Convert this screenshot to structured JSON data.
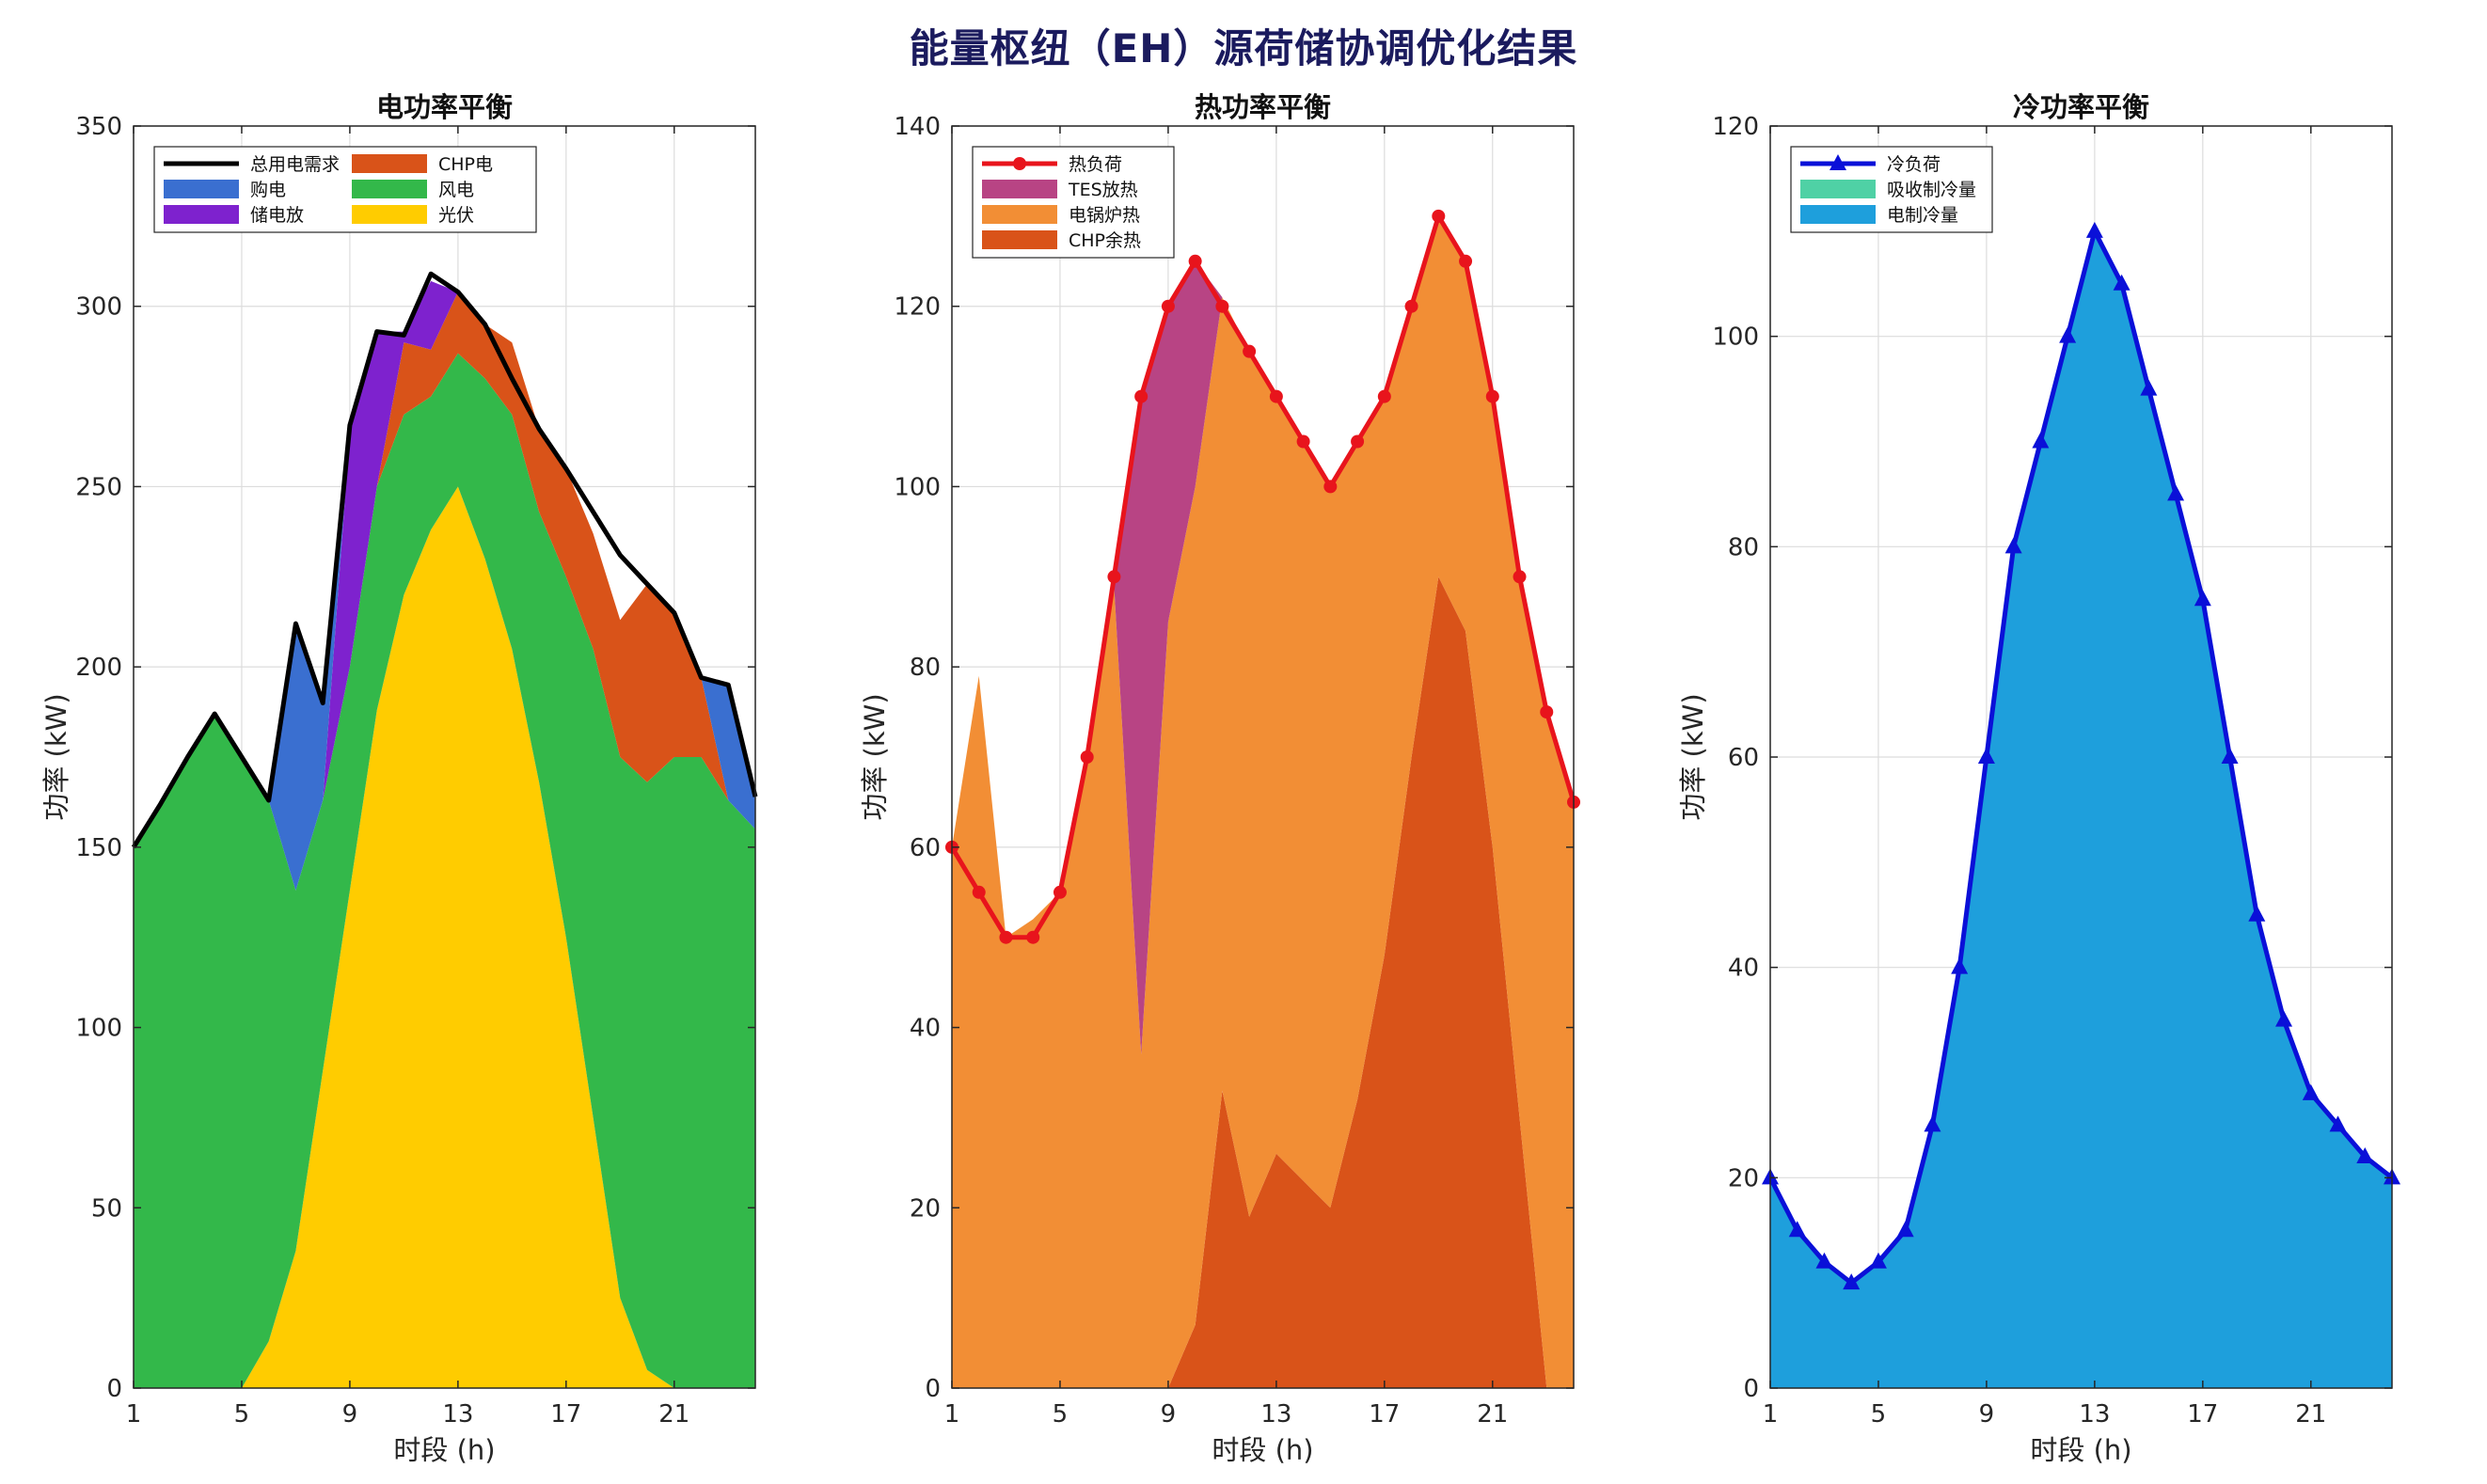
{
  "figure_title": "能量枢纽（EH）源荷储协调优化结果",
  "chart_data": [
    {
      "type": "area",
      "title": "电功率平衡",
      "xlabel": "时段 (h)",
      "ylabel": "功率 (kW)",
      "xlim": [
        1,
        24
      ],
      "ylim": [
        0,
        350
      ],
      "xticks": [
        1,
        5,
        9,
        13,
        17,
        21
      ],
      "yticks": [
        0,
        50,
        100,
        150,
        200,
        250,
        300,
        350
      ],
      "grid": true,
      "legend_position": "top-left",
      "legend_columns": 2,
      "x": [
        1,
        2,
        3,
        4,
        5,
        6,
        7,
        8,
        9,
        10,
        11,
        12,
        13,
        14,
        15,
        16,
        17,
        18,
        19,
        20,
        21,
        22,
        23,
        24
      ],
      "stack_order": [
        "光伏",
        "风电",
        "CHP电",
        "储电放",
        "购电"
      ],
      "series": [
        {
          "name": "光伏",
          "kind": "area",
          "color": "#FFCC00",
          "values": [
            0,
            0,
            0,
            0,
            0,
            13,
            38,
            88,
            138,
            188,
            220,
            238,
            250,
            230,
            205,
            168,
            125,
            75,
            25,
            5,
            0,
            0,
            0,
            0
          ]
        },
        {
          "name": "风电",
          "kind": "area",
          "color": "#33B84A",
          "values": [
            150,
            162,
            175,
            187,
            175,
            150,
            100,
            75,
            62,
            62,
            50,
            37,
            37,
            50,
            65,
            75,
            100,
            130,
            150,
            163,
            175,
            175,
            163,
            155
          ]
        },
        {
          "name": "CHP电",
          "kind": "area",
          "color": "#D95319",
          "values": [
            0,
            0,
            0,
            0,
            0,
            0,
            0,
            0,
            0,
            0,
            20,
            13,
            17,
            15,
            20,
            23,
            30,
            32,
            38,
            55,
            40,
            22,
            0,
            0
          ]
        },
        {
          "name": "储电放",
          "kind": "area",
          "color": "#7E22CE",
          "values": [
            0,
            0,
            0,
            0,
            0,
            0,
            0,
            0,
            65,
            43,
            3,
            19,
            0,
            0,
            0,
            0,
            0,
            0,
            0,
            0,
            0,
            0,
            0,
            0
          ]
        },
        {
          "name": "购电",
          "kind": "area",
          "color": "#3A6FD0",
          "values": [
            0,
            0,
            0,
            0,
            0,
            0,
            74,
            27,
            2,
            0,
            0,
            0,
            0,
            0,
            0,
            0,
            0,
            0,
            0,
            0,
            0,
            0,
            32,
            9
          ]
        },
        {
          "name": "总用电需求",
          "kind": "line",
          "color": "#000000",
          "values": [
            150,
            162,
            175,
            187,
            175,
            163,
            212,
            190,
            267,
            293,
            292,
            309,
            304,
            295,
            280,
            266,
            255,
            243,
            231,
            223,
            215,
            197,
            195,
            164
          ]
        }
      ],
      "legend": [
        "总用电需求",
        "CHP电",
        "购电",
        "风电",
        "储电放",
        "光伏"
      ]
    },
    {
      "type": "area",
      "title": "热功率平衡",
      "xlabel": "时段 (h)",
      "ylabel": "功率 (kW)",
      "xlim": [
        1,
        24
      ],
      "ylim": [
        0,
        140
      ],
      "xticks": [
        1,
        5,
        9,
        13,
        17,
        21
      ],
      "yticks": [
        0,
        20,
        40,
        60,
        80,
        100,
        120,
        140
      ],
      "grid": true,
      "legend_position": "top-left",
      "legend_columns": 1,
      "x": [
        1,
        2,
        3,
        4,
        5,
        6,
        7,
        8,
        9,
        10,
        11,
        12,
        13,
        14,
        15,
        16,
        17,
        18,
        19,
        20,
        21,
        22,
        23,
        24
      ],
      "stack_order": [
        "CHP余热",
        "电锅炉热",
        "TES放热"
      ],
      "series": [
        {
          "name": "CHP余热",
          "kind": "area",
          "color": "#D95319",
          "values": [
            0,
            0,
            0,
            0,
            0,
            0,
            0,
            0,
            0,
            7,
            33,
            19,
            26,
            23,
            20,
            32,
            48,
            70,
            90,
            84,
            60,
            30,
            0,
            0
          ]
        },
        {
          "name": "电锅炉热",
          "kind": "area",
          "color": "#F28E35",
          "values": [
            60,
            79,
            50,
            52,
            55,
            70,
            89,
            37,
            85,
            93,
            88,
            96,
            84,
            82,
            80,
            73,
            62,
            50,
            40,
            41,
            50,
            60,
            75,
            65
          ]
        },
        {
          "name": "TES放热",
          "kind": "area",
          "color": "#B84484",
          "values": [
            0,
            0,
            0,
            0,
            0,
            0,
            1,
            73,
            35,
            25,
            0,
            0,
            0,
            0,
            0,
            0,
            0,
            0,
            0,
            0,
            0,
            0,
            0,
            0
          ]
        },
        {
          "name": "热负荷",
          "kind": "line",
          "marker": "circle",
          "color": "#E8141C",
          "values": [
            60,
            55,
            50,
            50,
            55,
            70,
            90,
            110,
            120,
            125,
            120,
            115,
            110,
            105,
            100,
            105,
            110,
            120,
            130,
            125,
            110,
            90,
            75,
            65
          ]
        }
      ],
      "legend": [
        "热负荷",
        "TES放热",
        "电锅炉热",
        "CHP余热"
      ]
    },
    {
      "type": "area",
      "title": "冷功率平衡",
      "xlabel": "时段 (h)",
      "ylabel": "功率 (kW)",
      "xlim": [
        1,
        24
      ],
      "ylim": [
        0,
        120
      ],
      "xticks": [
        1,
        5,
        9,
        13,
        17,
        21
      ],
      "yticks": [
        0,
        20,
        40,
        60,
        80,
        100,
        120
      ],
      "grid": true,
      "legend_position": "top-left",
      "legend_columns": 1,
      "x": [
        1,
        2,
        3,
        4,
        5,
        6,
        7,
        8,
        9,
        10,
        11,
        12,
        13,
        14,
        15,
        16,
        17,
        18,
        19,
        20,
        21,
        22,
        23,
        24
      ],
      "stack_order": [
        "吸收制冷量",
        "电制冷量"
      ],
      "series": [
        {
          "name": "吸收制冷量",
          "kind": "area",
          "color": "#4FD1A5",
          "values": [
            0,
            0,
            0,
            0,
            0,
            0,
            0,
            0,
            0,
            0,
            0,
            0,
            0,
            0,
            0,
            0,
            0,
            0,
            0,
            0,
            0,
            0,
            0,
            0
          ]
        },
        {
          "name": "电制冷量",
          "kind": "area",
          "color": "#1E9FDC",
          "values": [
            20,
            15,
            12,
            10,
            12,
            15,
            25,
            40,
            60,
            80,
            90,
            100,
            110,
            105,
            95,
            85,
            75,
            60,
            45,
            35,
            28,
            25,
            22,
            20
          ]
        },
        {
          "name": "冷负荷",
          "kind": "line",
          "marker": "triangle",
          "color": "#0A10D8",
          "values": [
            20,
            15,
            12,
            10,
            12,
            15,
            25,
            40,
            60,
            80,
            90,
            100,
            110,
            105,
            95,
            85,
            75,
            60,
            45,
            35,
            28,
            25,
            22,
            20
          ]
        }
      ],
      "legend": [
        "冷负荷",
        "吸收制冷量",
        "电制冷量"
      ]
    }
  ]
}
